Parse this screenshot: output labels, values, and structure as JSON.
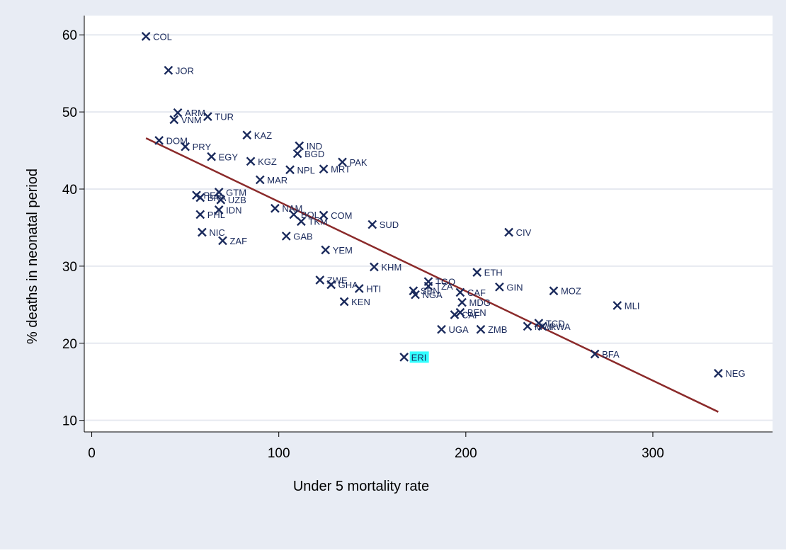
{
  "colors": {
    "outer_background": "#e8ecf4",
    "plot_background": "#ffffff",
    "grid": "#e6e9f0",
    "marker": "#1a2a5c",
    "fit_line": "#8b2a2a",
    "highlight": "#33ffff"
  },
  "chart_data": {
    "type": "scatter",
    "xlabel": "Under 5 mortality rate",
    "ylabel": "% deaths in neonatal period",
    "xlim": [
      -4,
      364
    ],
    "ylim": [
      8.5,
      62.5
    ],
    "xticks": [
      0,
      100,
      200,
      300
    ],
    "yticks": [
      10,
      20,
      30,
      40,
      50,
      60
    ],
    "grid": "horizontal",
    "marker": "x",
    "highlighted": "ERI",
    "points": [
      {
        "label": "COL",
        "x": 29,
        "y": 59.8
      },
      {
        "label": "JOR",
        "x": 41,
        "y": 55.4
      },
      {
        "label": "ARM",
        "x": 46,
        "y": 49.9
      },
      {
        "label": "VNM",
        "x": 44,
        "y": 49.0
      },
      {
        "label": "TUR",
        "x": 62,
        "y": 49.4
      },
      {
        "label": "DOM",
        "x": 36,
        "y": 46.3
      },
      {
        "label": "PRY",
        "x": 50,
        "y": 45.5
      },
      {
        "label": "KAZ",
        "x": 83,
        "y": 47.0
      },
      {
        "label": "IND",
        "x": 111,
        "y": 45.6
      },
      {
        "label": "BGD",
        "x": 110,
        "y": 44.6
      },
      {
        "label": "EGY",
        "x": 64,
        "y": 44.2
      },
      {
        "label": "KGZ",
        "x": 85,
        "y": 43.6
      },
      {
        "label": "PAK",
        "x": 134,
        "y": 43.5
      },
      {
        "label": "NPL",
        "x": 106,
        "y": 42.5
      },
      {
        "label": "MRT",
        "x": 124,
        "y": 42.6
      },
      {
        "label": "MAR",
        "x": 90,
        "y": 41.2
      },
      {
        "label": "PER",
        "x": 56,
        "y": 39.2
      },
      {
        "label": "BRA",
        "x": 58,
        "y": 38.9
      },
      {
        "label": "GTM",
        "x": 68,
        "y": 39.6
      },
      {
        "label": "UZB",
        "x": 69,
        "y": 38.6
      },
      {
        "label": "IDN",
        "x": 68,
        "y": 37.3
      },
      {
        "label": "NAM",
        "x": 98,
        "y": 37.5
      },
      {
        "label": "BOL",
        "x": 108,
        "y": 36.7
      },
      {
        "label": "COM",
        "x": 124,
        "y": 36.6
      },
      {
        "label": "TKM",
        "x": 112,
        "y": 35.8
      },
      {
        "label": "PHL",
        "x": 58,
        "y": 36.7
      },
      {
        "label": "SUD",
        "x": 150,
        "y": 35.4
      },
      {
        "label": "CIV",
        "x": 223,
        "y": 34.4
      },
      {
        "label": "NIC",
        "x": 59,
        "y": 34.4
      },
      {
        "label": "GAB",
        "x": 104,
        "y": 33.9
      },
      {
        "label": "ZAF",
        "x": 70,
        "y": 33.3
      },
      {
        "label": "YEM",
        "x": 125,
        "y": 32.1
      },
      {
        "label": "KHM",
        "x": 151,
        "y": 29.9
      },
      {
        "label": "ETH",
        "x": 206,
        "y": 29.2
      },
      {
        "label": "ZWE",
        "x": 122,
        "y": 28.2
      },
      {
        "label": "GHA",
        "x": 128,
        "y": 27.6
      },
      {
        "label": "HTI",
        "x": 143,
        "y": 27.1
      },
      {
        "label": "TGO",
        "x": 180,
        "y": 28.0
      },
      {
        "label": "TZA",
        "x": 180,
        "y": 27.4
      },
      {
        "label": "SEN",
        "x": 172,
        "y": 26.8
      },
      {
        "label": "NGA",
        "x": 173,
        "y": 26.3
      },
      {
        "label": "CAF",
        "x": 197,
        "y": 26.6
      },
      {
        "label": "GIN",
        "x": 218,
        "y": 27.3
      },
      {
        "label": "MOZ",
        "x": 247,
        "y": 26.8
      },
      {
        "label": "KEN",
        "x": 135,
        "y": 25.4
      },
      {
        "label": "MDG",
        "x": 198,
        "y": 25.3
      },
      {
        "label": "MLI",
        "x": 281,
        "y": 24.9
      },
      {
        "label": "BEN",
        "x": 197,
        "y": 24.0
      },
      {
        "label": "CAF",
        "x": 194,
        "y": 23.7
      },
      {
        "label": "TCD",
        "x": 239,
        "y": 22.6
      },
      {
        "label": "MWI",
        "x": 233,
        "y": 22.2
      },
      {
        "label": "RWA",
        "x": 241,
        "y": 22.2
      },
      {
        "label": "UGA",
        "x": 187,
        "y": 21.8
      },
      {
        "label": "ZMB",
        "x": 208,
        "y": 21.8
      },
      {
        "label": "BFA",
        "x": 269,
        "y": 18.6
      },
      {
        "label": "ERI",
        "x": 167,
        "y": 18.2
      },
      {
        "label": "NEG",
        "x": 335,
        "y": 16.1
      }
    ],
    "fit_line": {
      "x": [
        29,
        335
      ],
      "y": [
        46.6,
        11.1
      ]
    }
  }
}
